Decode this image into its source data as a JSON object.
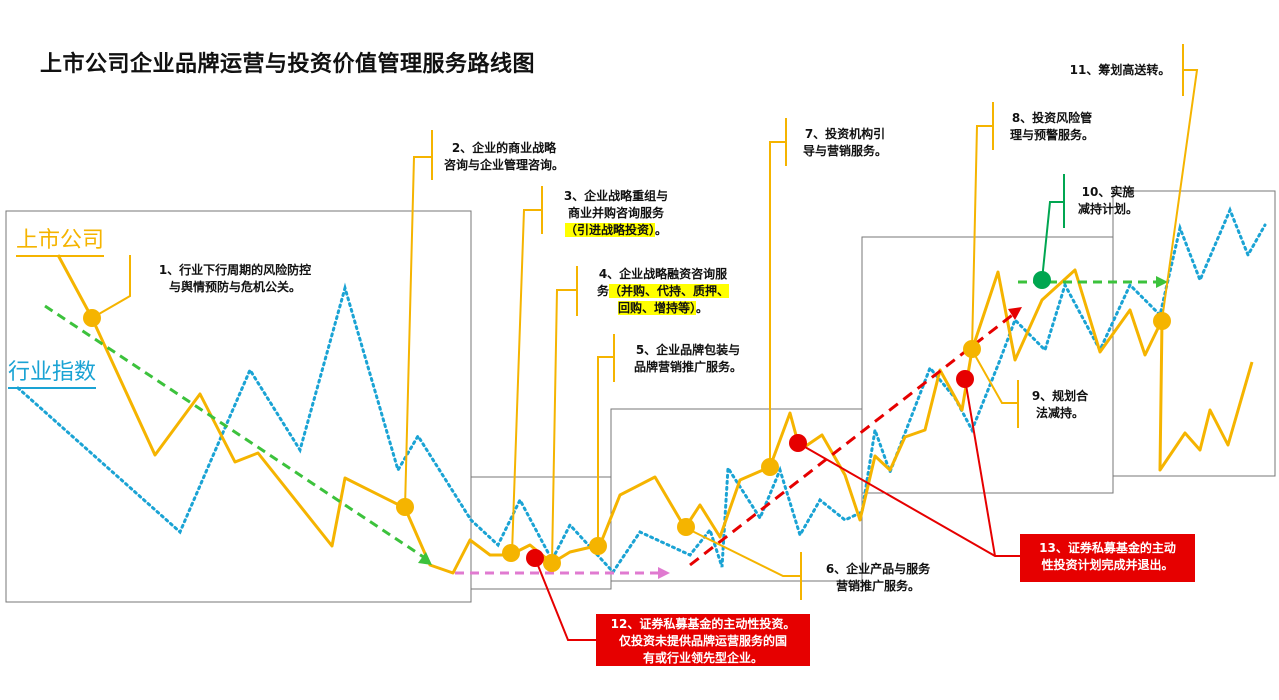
{
  "title": "上市公司企业品牌运营与投资价值管理服务路线图",
  "legend": {
    "company": "上市公司",
    "index": "行业指数"
  },
  "colors": {
    "company_line": "#f5b400",
    "index_line": "#1aa3d4",
    "trend_green": "#3cc23c",
    "trend_red": "#e60000",
    "trend_pink": "#e07ad0",
    "exit_green": "#00a651"
  },
  "annotations": [
    {
      "id": "1",
      "lines": [
        "1、行业下行周期的风险防控",
        "与舆情预防与危机公关。"
      ]
    },
    {
      "id": "2",
      "lines": [
        "2、企业的商业战略",
        "咨询与企业管理咨询。"
      ]
    },
    {
      "id": "3",
      "lines": [
        "3、企业战略重组与",
        "商业并购咨询服务"
      ],
      "highlight": "（引进战略投资）",
      "after": "。"
    },
    {
      "id": "4",
      "lines": [
        "4、企业战略融资咨询服",
        "务"
      ],
      "highlight1": "（并购、代持、质押、",
      "highlight2": "回购、增持等）",
      "after": "。"
    },
    {
      "id": "5",
      "lines": [
        "5、企业品牌包装与",
        "品牌营销推广服务。"
      ]
    },
    {
      "id": "6",
      "lines": [
        "6、企业产品与服务",
        "营销推广服务。"
      ]
    },
    {
      "id": "7",
      "lines": [
        "7、投资机构引",
        "导与营销服务。"
      ]
    },
    {
      "id": "8",
      "lines": [
        "8、投资风险管",
        "理与预警服务。"
      ]
    },
    {
      "id": "9",
      "lines": [
        "9、规划合",
        "法减持。"
      ]
    },
    {
      "id": "10",
      "lines": [
        "10、实施",
        "减持计划。"
      ]
    },
    {
      "id": "11",
      "lines": [
        "11、筹划高送转。"
      ]
    }
  ],
  "red_boxes": [
    {
      "id": "12",
      "lines": [
        "12、证券私募基金的主动性投资。",
        "仅投资未提供品牌运营服务的国",
        "有或行业领先型企业。"
      ]
    },
    {
      "id": "13",
      "lines": [
        "13、证券私募基金的主动",
        "性投资计划完成并退出。"
      ]
    }
  ]
}
